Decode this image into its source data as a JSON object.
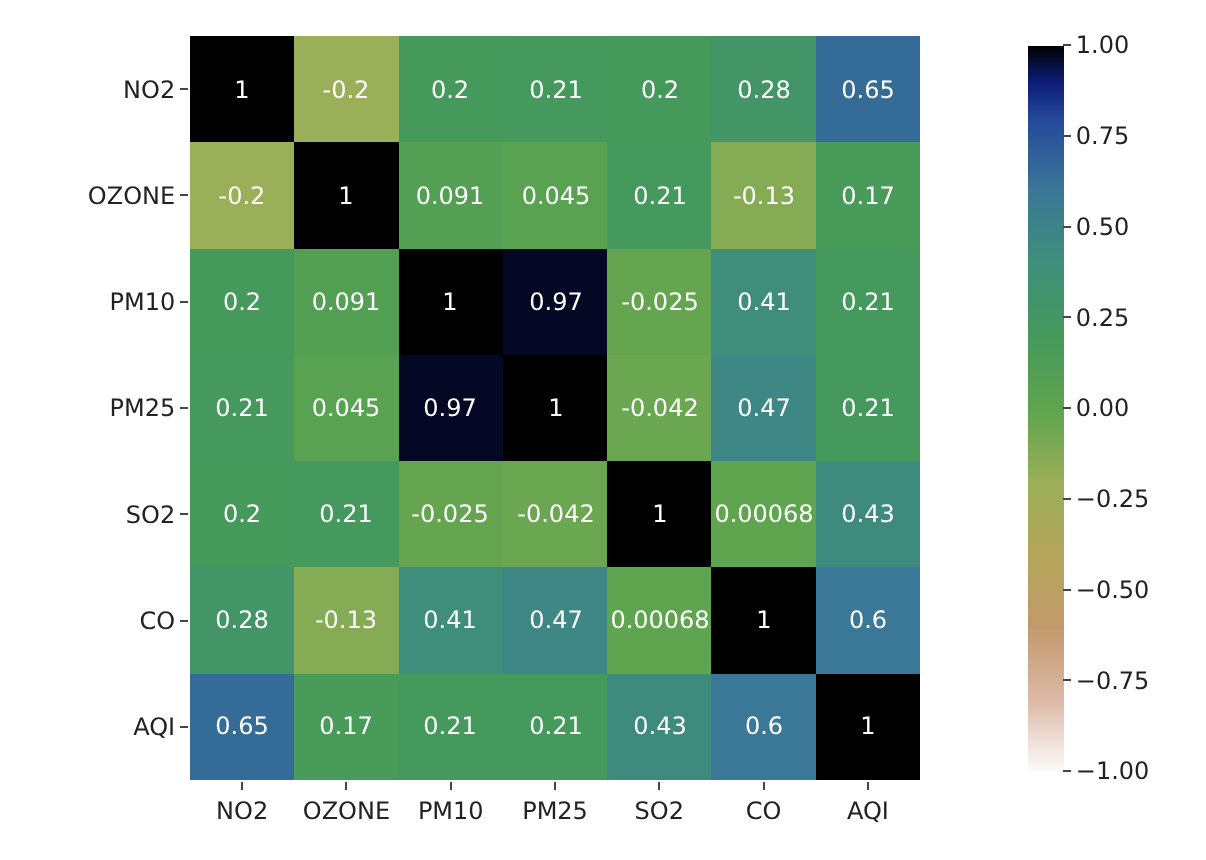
{
  "chart_data": {
    "type": "heatmap",
    "categories": [
      "NO2",
      "OZONE",
      "PM10",
      "PM25",
      "SO2",
      "CO",
      "AQI"
    ],
    "y_categories": [
      "NO2",
      "OZONE",
      "PM10",
      "PM25",
      "SO2",
      "CO",
      "AQI"
    ],
    "cells": [
      [
        1,
        -0.2,
        0.2,
        0.21,
        0.2,
        0.28,
        0.65
      ],
      [
        -0.2,
        1,
        0.091,
        0.045,
        0.21,
        -0.13,
        0.17
      ],
      [
        0.2,
        0.091,
        1,
        0.97,
        -0.025,
        0.41,
        0.21
      ],
      [
        0.21,
        0.045,
        0.97,
        1,
        -0.042,
        0.47,
        0.21
      ],
      [
        0.2,
        0.21,
        -0.025,
        -0.042,
        1,
        0.00068,
        0.43
      ],
      [
        0.28,
        -0.13,
        0.41,
        0.47,
        0.00068,
        1,
        0.6
      ],
      [
        0.65,
        0.17,
        0.21,
        0.21,
        0.43,
        0.6,
        1
      ]
    ],
    "data_labels": true,
    "clim": [
      -1,
      1
    ],
    "cticks": [
      {
        "value": 1,
        "label": "1.00"
      },
      {
        "value": 0.75,
        "label": "0.75"
      },
      {
        "value": 0.5,
        "label": "0.50"
      },
      {
        "value": 0.25,
        "label": "0.25"
      },
      {
        "value": 0,
        "label": "0.00"
      },
      {
        "value": -0.25,
        "label": "−0.25"
      },
      {
        "value": -0.5,
        "label": "−0.50"
      },
      {
        "value": -0.75,
        "label": "−0.75"
      },
      {
        "value": -1,
        "label": "−1.00"
      }
    ]
  }
}
